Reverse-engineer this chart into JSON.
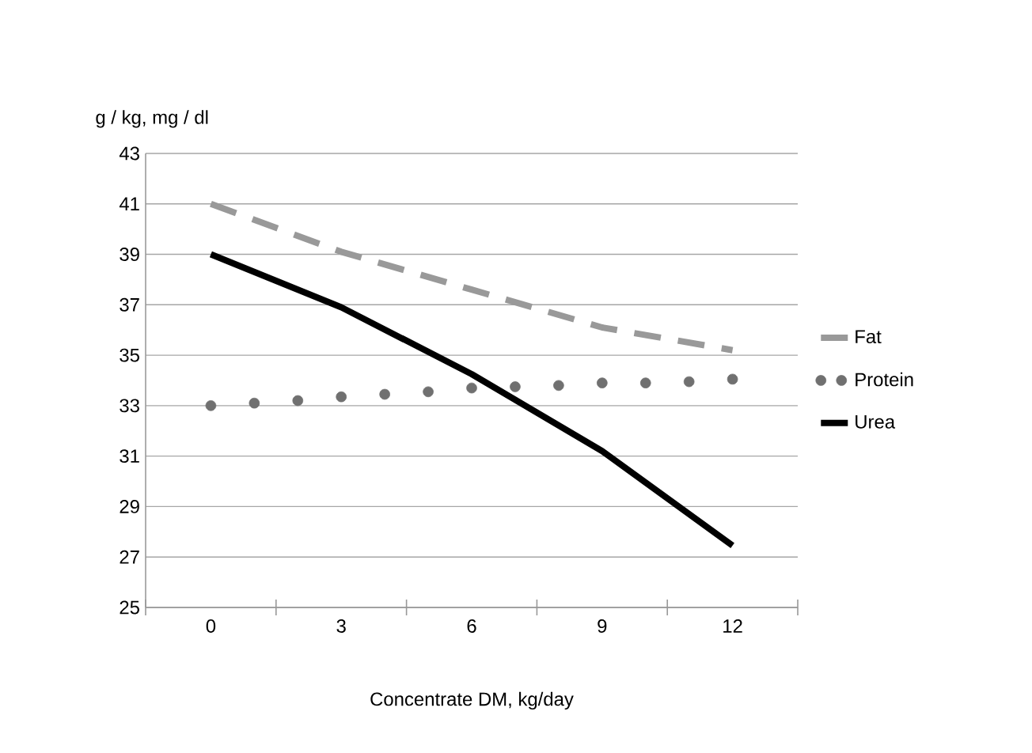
{
  "chart_data": {
    "type": "line",
    "xlabel": "Concentrate DM, kg/day",
    "ylabel": "g / kg, mg / dl",
    "xlim": [
      -1.5,
      13.5
    ],
    "xticks": [
      {
        "value": -1.5,
        "label": null
      },
      0,
      {
        "value": 1.5,
        "label": null
      },
      3,
      {
        "value": 4.5,
        "label": null
      },
      6,
      {
        "value": 7.5,
        "label": null
      },
      9,
      {
        "value": 10.5,
        "label": null
      },
      12,
      {
        "value": 13.5,
        "label": null
      }
    ],
    "ylim": [
      25,
      43
    ],
    "yticks": [
      25,
      27,
      29,
      31,
      33,
      35,
      37,
      39,
      41,
      43
    ],
    "grid": "y",
    "legend": "right",
    "series": [
      {
        "name": "Fat",
        "color": "#999999",
        "line_style": "dashed",
        "x": [
          0,
          3,
          6,
          9,
          12
        ],
        "values": [
          41.0,
          39.1,
          37.6,
          36.1,
          35.2
        ]
      },
      {
        "name": "Protein",
        "color": "#707070",
        "type": "scatter",
        "marker": "circle",
        "x": [
          0,
          1,
          2,
          3,
          4,
          5,
          6,
          7,
          8,
          9,
          10,
          11,
          12
        ],
        "values": [
          33.0,
          33.1,
          33.2,
          33.35,
          33.45,
          33.55,
          33.7,
          33.75,
          33.8,
          33.9,
          33.9,
          33.95,
          34.05
        ]
      },
      {
        "name": "Urea",
        "color": "#000000",
        "line_style": "solid",
        "x": [
          0,
          3,
          6,
          9,
          12
        ],
        "values": [
          39.0,
          36.9,
          34.25,
          31.2,
          27.45
        ]
      }
    ]
  }
}
